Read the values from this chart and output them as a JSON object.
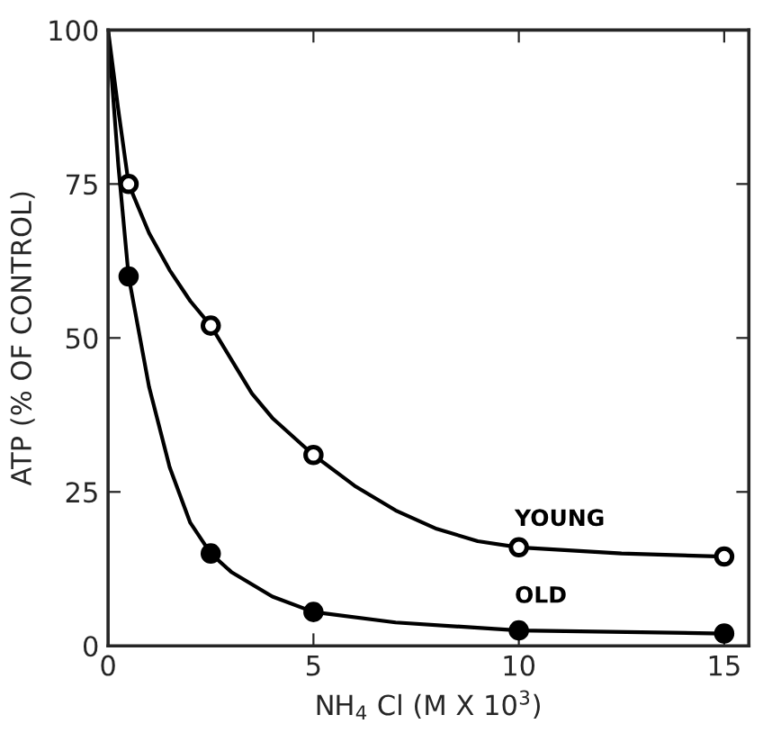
{
  "chart_data": {
    "type": "line",
    "xlabel": "NH$_{4}$ Cl (M X 10$^{3}$)",
    "ylabel": "ATP (% OF CONTROL)",
    "xlim": [
      0,
      15.6
    ],
    "ylim": [
      0,
      100
    ],
    "xticks": [
      0,
      5,
      10,
      15
    ],
    "yticks": [
      0,
      25,
      50,
      75,
      100
    ],
    "grid": false,
    "legend": false,
    "series": [
      {
        "name": "YOUNG",
        "color": "#000000",
        "marker": "none",
        "x": [
          0,
          0.25,
          0.5,
          1,
          1.5,
          2,
          2.5,
          3.5,
          4,
          5,
          6,
          7,
          8,
          9,
          10,
          12.5,
          15
        ],
        "values": [
          100,
          87,
          75,
          67,
          61,
          56,
          52,
          41,
          37,
          31,
          26,
          22,
          19,
          17,
          16,
          15,
          14.5
        ]
      },
      {
        "name": "OLD",
        "color": "#000000",
        "marker": "none",
        "x": [
          0,
          0.25,
          0.5,
          1,
          1.5,
          2,
          2.5,
          3,
          4,
          5,
          7,
          10,
          15
        ],
        "values": [
          100,
          78,
          60,
          42,
          29,
          20,
          15,
          12,
          8,
          5.5,
          3.8,
          2.5,
          2
        ]
      },
      {
        "type": "scatter",
        "color": "#ffffff",
        "marker": "circle",
        "x": [
          0.5,
          2.5,
          5,
          10,
          15
        ],
        "values": [
          75,
          52,
          31,
          16,
          14.5
        ]
      },
      {
        "type": "scatter",
        "color": "#000000",
        "marker": "circle",
        "x": [
          0.5,
          2.5,
          5,
          10,
          15
        ],
        "values": [
          60,
          15,
          5.5,
          2.5,
          2
        ]
      }
    ]
  }
}
